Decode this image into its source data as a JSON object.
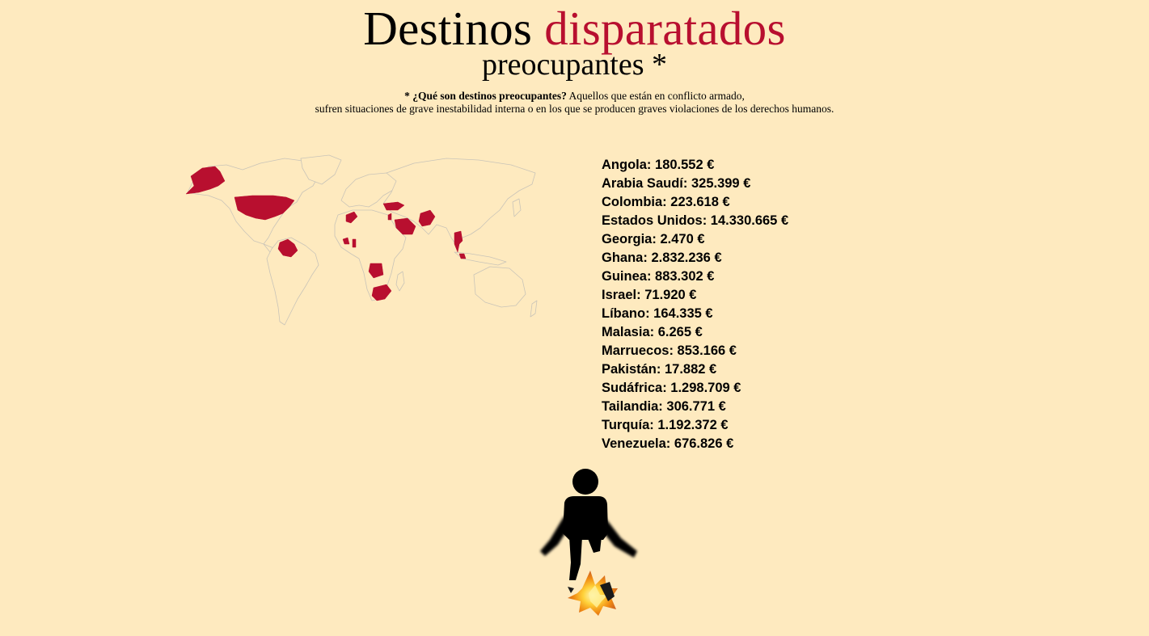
{
  "header": {
    "title_main": "Destinos",
    "title_accent": "disparatados",
    "subtitle": "preocupantes *",
    "note_bold": "* ¿Qué son destinos preocupantes?",
    "note_line1": " Aquellos que están en conflicto armado,",
    "note_line2": "sufren situaciones de grave inestabilidad interna o en los que se producen graves violaciones de los derechos humanos."
  },
  "colors": {
    "background": "#feeabf",
    "accent": "#b80f2f",
    "map_outline": "#c9c4b8"
  },
  "map": {
    "highlighted_countries": [
      "Estados Unidos",
      "Venezuela",
      "Colombia",
      "Marruecos",
      "Guinea",
      "Ghana",
      "Angola",
      "Sudáfrica",
      "Turquía",
      "Georgia",
      "Israel",
      "Líbano",
      "Arabia Saudí",
      "Pakistán",
      "Tailandia",
      "Malasia"
    ]
  },
  "destinations": [
    {
      "country": "Angola",
      "amount": "180.552 €"
    },
    {
      "country": "Arabia Saudí",
      "amount": "325.399 €"
    },
    {
      "country": "Colombia",
      "amount": "223.618 €"
    },
    {
      "country": "Estados Unidos",
      "amount": "14.330.665 €"
    },
    {
      "country": "Georgia",
      "amount": "2.470 €"
    },
    {
      "country": "Ghana",
      "amount": "2.832.236 €"
    },
    {
      "country": "Guinea",
      "amount": "883.302 €"
    },
    {
      "country": "Israel",
      "amount": "71.920 €"
    },
    {
      "country": "Líbano",
      "amount": "164.335 €"
    },
    {
      "country": "Malasia",
      "amount": "6.265 €"
    },
    {
      "country": "Marruecos",
      "amount": "853.166 €"
    },
    {
      "country": "Pakistán",
      "amount": "17.882 €"
    },
    {
      "country": "Sudáfrica",
      "amount": "1.298.709 €"
    },
    {
      "country": "Tailandia",
      "amount": "306.771 €"
    },
    {
      "country": "Turquía",
      "amount": "1.192.372 €"
    },
    {
      "country": "Venezuela",
      "amount": "676.826 €"
    }
  ],
  "figure": {
    "icon": "person-stepping-on-mine-icon"
  }
}
